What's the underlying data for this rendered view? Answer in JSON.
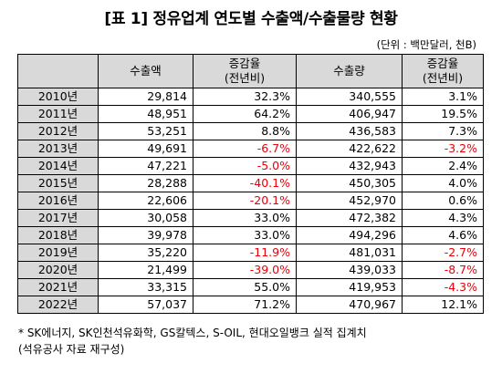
{
  "title": "[표 1] 정유업계 연도별 수출액/수출물량 현황",
  "unit_note": "(단위 : 백만달러, 천B)",
  "columns": {
    "export_value": "수출액",
    "value_change_line1": "증감율",
    "value_change_line2": "(전년비)",
    "export_volume": "수출량",
    "volume_change_line1": "증감율",
    "volume_change_line2": "(전년비)"
  },
  "rows": [
    {
      "year": "2010년",
      "value": "29,814",
      "value_change": "32.3%",
      "value_neg": false,
      "volume": "340,555",
      "volume_change": "3.1%",
      "volume_neg": false
    },
    {
      "year": "2011년",
      "value": "48,951",
      "value_change": "64.2%",
      "value_neg": false,
      "volume": "406,947",
      "volume_change": "19.5%",
      "volume_neg": false
    },
    {
      "year": "2012년",
      "value": "53,251",
      "value_change": "8.8%",
      "value_neg": false,
      "volume": "436,583",
      "volume_change": "7.3%",
      "volume_neg": false
    },
    {
      "year": "2013년",
      "value": "49,691",
      "value_change": "-6.7%",
      "value_neg": true,
      "volume": "422,622",
      "volume_change": "-3.2%",
      "volume_neg": true
    },
    {
      "year": "2014년",
      "value": "47,221",
      "value_change": "-5.0%",
      "value_neg": true,
      "volume": "432,943",
      "volume_change": "2.4%",
      "volume_neg": false
    },
    {
      "year": "2015년",
      "value": "28,288",
      "value_change": "-40.1%",
      "value_neg": true,
      "volume": "450,305",
      "volume_change": "4.0%",
      "volume_neg": false
    },
    {
      "year": "2016년",
      "value": "22,606",
      "value_change": "-20.1%",
      "value_neg": true,
      "volume": "452,970",
      "volume_change": "0.6%",
      "volume_neg": false
    },
    {
      "year": "2017년",
      "value": "30,058",
      "value_change": "33.0%",
      "value_neg": false,
      "volume": "472,382",
      "volume_change": "4.3%",
      "volume_neg": false
    },
    {
      "year": "2018년",
      "value": "39,978",
      "value_change": "33.0%",
      "value_neg": false,
      "volume": "494,296",
      "volume_change": "4.6%",
      "volume_neg": false
    },
    {
      "year": "2019년",
      "value": "35,220",
      "value_change": "-11.9%",
      "value_neg": true,
      "volume": "481,031",
      "volume_change": "-2.7%",
      "volume_neg": true
    },
    {
      "year": "2020년",
      "value": "21,499",
      "value_change": "-39.0%",
      "value_neg": true,
      "volume": "439,033",
      "volume_change": "-8.7%",
      "volume_neg": true
    },
    {
      "year": "2021년",
      "value": "33,315",
      "value_change": "55.0%",
      "value_neg": false,
      "volume": "419,953",
      "volume_change": "-4.3%",
      "volume_neg": true
    },
    {
      "year": "2022년",
      "value": "57,037",
      "value_change": "71.2%",
      "value_neg": false,
      "volume": "470,967",
      "volume_change": "12.1%",
      "volume_neg": false
    }
  ],
  "colors": {
    "negative": "#e8000b",
    "header_fill": "#d9d9d9"
  },
  "footnote": {
    "line1": "* SK에너지, SK인천석유화학, GS칼텍스, S-OIL, 현대오일뱅크 실적 집계치",
    "line2": "(석유공사 자료 재구성)"
  }
}
